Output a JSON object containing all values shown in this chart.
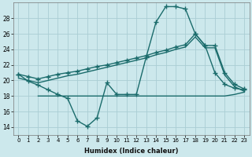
{
  "xlabel": "Humidex (Indice chaleur)",
  "x_ticks": [
    0,
    1,
    2,
    3,
    4,
    5,
    6,
    7,
    8,
    9,
    10,
    11,
    12,
    13,
    14,
    15,
    16,
    17,
    18,
    19,
    20,
    21,
    22,
    23
  ],
  "ylim": [
    13,
    30
  ],
  "xlim": [
    -0.5,
    23.5
  ],
  "yticks": [
    14,
    16,
    18,
    20,
    22,
    24,
    26,
    28
  ],
  "background_color": "#cce8ec",
  "grid_color": "#aacdd4",
  "line_color": "#1a6b6b",
  "curve1_x": [
    0,
    1,
    2,
    3,
    4,
    5,
    6,
    7,
    8,
    9,
    10,
    11,
    12,
    13,
    14,
    15,
    16,
    17,
    18,
    19,
    20,
    21,
    22,
    23
  ],
  "curve1_y": [
    20.8,
    19.9,
    19.4,
    18.8,
    18.2,
    17.7,
    14.8,
    14.1,
    15.2,
    19.7,
    18.2,
    18.2,
    18.2,
    23.0,
    27.5,
    29.5,
    29.5,
    29.2,
    26.0,
    24.5,
    21.0,
    19.5,
    19.0,
    18.8
  ],
  "curve2_x": [
    0,
    1,
    2,
    3,
    4,
    5,
    6,
    7,
    8,
    9,
    10,
    11,
    12,
    13,
    14,
    15,
    16,
    17,
    18,
    19,
    20,
    21,
    22,
    23
  ],
  "curve2_y": [
    20.8,
    20.5,
    20.2,
    20.5,
    20.8,
    21.0,
    21.2,
    21.5,
    21.8,
    22.0,
    22.3,
    22.6,
    22.9,
    23.2,
    23.6,
    23.9,
    24.3,
    24.6,
    26.0,
    24.5,
    24.5,
    21.0,
    19.5,
    18.9
  ],
  "curve3_x": [
    0,
    1,
    2,
    3,
    4,
    5,
    6,
    7,
    8,
    9,
    10,
    11,
    12,
    13,
    14,
    15,
    16,
    17,
    18,
    19,
    20,
    21,
    22,
    23
  ],
  "curve3_y": [
    20.3,
    20.0,
    19.7,
    20.0,
    20.3,
    20.6,
    20.8,
    21.1,
    21.4,
    21.7,
    22.0,
    22.3,
    22.6,
    22.9,
    23.3,
    23.6,
    24.0,
    24.3,
    25.6,
    24.2,
    24.2,
    20.7,
    19.2,
    18.6
  ],
  "curve4_x": [
    2,
    3,
    4,
    5,
    6,
    7,
    8,
    9,
    10,
    11,
    12,
    13,
    14,
    15,
    16,
    17,
    18,
    19,
    20,
    21,
    22,
    23
  ],
  "curve4_y": [
    18.0,
    18.0,
    18.0,
    18.0,
    18.0,
    18.0,
    18.0,
    18.0,
    18.0,
    18.0,
    18.0,
    18.0,
    18.0,
    18.0,
    18.0,
    18.0,
    18.0,
    18.0,
    18.0,
    18.0,
    18.2,
    18.5
  ]
}
